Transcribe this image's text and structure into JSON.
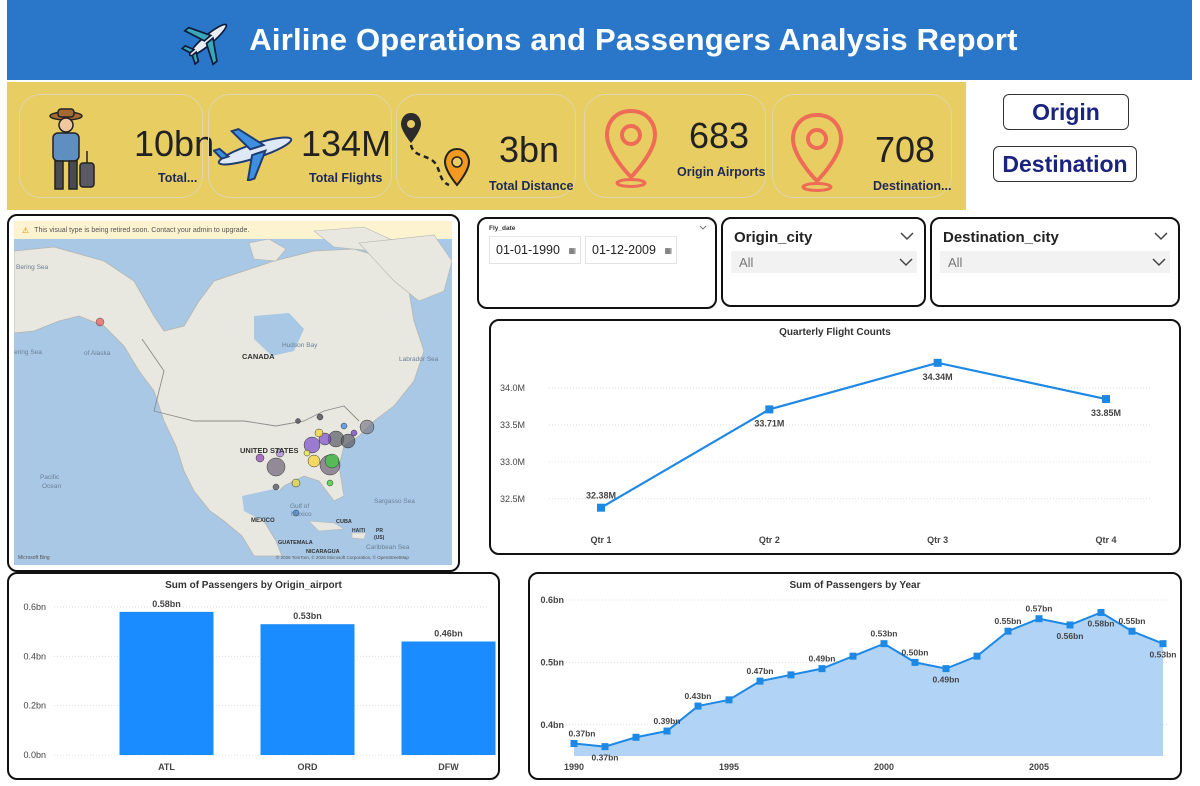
{
  "header": {
    "title": "Airline Operations and Passengers Analysis Report"
  },
  "kpis": [
    {
      "value": "10bn",
      "label": "Total...",
      "icon": "traveler-icon"
    },
    {
      "value": "134M",
      "label": "Total Flights",
      "icon": "airplane-icon"
    },
    {
      "value": "3bn",
      "label": "Total Distance",
      "icon": "route-icon"
    },
    {
      "value": "683",
      "label": "Origin Airports",
      "icon": "location-pin-icon"
    },
    {
      "value": "708",
      "label": "Destination...",
      "icon": "location-pin-icon"
    }
  ],
  "nav": {
    "origin_label": "Origin",
    "destination_label": "Destination"
  },
  "map": {
    "warning": "This visual type is being retired soon. Contact your admin to upgrade.",
    "labels": {
      "bering": "Bering Sea",
      "bering2": "ering Sea",
      "alaska": "of Alaska",
      "canada": "CANADA",
      "hudson": "Hudson Bay",
      "labrador": "Labrador Sea",
      "us": "UNITED STATES",
      "pacific": "Pacific\nOcean",
      "sargasso": "Sargasso Sea",
      "gulf": "Gulf of\nMexico",
      "mexico": "MEXICO",
      "cuba": "CUBA",
      "haiti": "HAITI",
      "pr": "PR\n(US)",
      "guatemala": "GUATEMALA",
      "nicaragua": "NICARAGUA",
      "caribbean": "Caribbean Sea",
      "bing": "Microsoft Bing",
      "copyright": "© 2026 TomTom, © 2026 Microsoft Corporation, © OpenStreetMap"
    }
  },
  "date_slicer": {
    "title": "Fly_date",
    "start": "01-01-1990",
    "end": "01-12-2009"
  },
  "origin_slicer": {
    "title": "Origin_city",
    "value": "All"
  },
  "destination_slicer": {
    "title": "Destination_city",
    "value": "All"
  },
  "chart_data": [
    {
      "type": "line",
      "title": "Quarterly Flight Counts",
      "categories": [
        "Qtr 1",
        "Qtr 2",
        "Qtr 3",
        "Qtr 4"
      ],
      "values": [
        32.38,
        33.71,
        34.34,
        33.85
      ],
      "data_labels": [
        "32.38M",
        "33.71M",
        "34.34M",
        "33.85M"
      ],
      "yticks": [
        "32.5M",
        "33.0M",
        "33.5M",
        "34.0M"
      ],
      "ytick_values": [
        32.5,
        33.0,
        33.5,
        34.0
      ],
      "ylim": [
        32.2,
        34.5
      ],
      "color": "#1e88e5",
      "grid": true
    },
    {
      "type": "bar",
      "title": "Sum of Passengers by Origin_airport",
      "categories": [
        "ATL",
        "ORD",
        "DFW"
      ],
      "values": [
        0.58,
        0.53,
        0.46
      ],
      "data_labels": [
        "0.58bn",
        "0.53bn",
        "0.46bn"
      ],
      "yticks": [
        "0.0bn",
        "0.2bn",
        "0.4bn",
        "0.6bn"
      ],
      "ytick_values": [
        0.0,
        0.2,
        0.4,
        0.6
      ],
      "ylim": [
        0,
        0.62
      ],
      "color": "#1a8cff",
      "grid": true
    },
    {
      "type": "area",
      "title": "Sum of Passengers by Year",
      "x": [
        1990,
        1991,
        1992,
        1993,
        1994,
        1995,
        1996,
        1997,
        1998,
        1999,
        2000,
        2001,
        2002,
        2003,
        2004,
        2005,
        2006,
        2007,
        2008,
        2009
      ],
      "values": [
        0.37,
        0.365,
        0.38,
        0.39,
        0.43,
        0.44,
        0.47,
        0.48,
        0.49,
        0.51,
        0.53,
        0.5,
        0.49,
        0.51,
        0.55,
        0.57,
        0.56,
        0.58,
        0.55,
        0.53
      ],
      "data_labels": [
        {
          "index": 0,
          "text": "0.37bn",
          "pos": "above"
        },
        {
          "index": 1,
          "text": "0.37bn",
          "pos": "below"
        },
        {
          "index": 3,
          "text": "0.39bn",
          "pos": "above"
        },
        {
          "index": 4,
          "text": "0.43bn",
          "pos": "above"
        },
        {
          "index": 6,
          "text": "0.47bn",
          "pos": "above"
        },
        {
          "index": 8,
          "text": "0.49bn",
          "pos": "above"
        },
        {
          "index": 10,
          "text": "0.53bn",
          "pos": "above"
        },
        {
          "index": 11,
          "text": "0.50bn",
          "pos": "above"
        },
        {
          "index": 12,
          "text": "0.49bn",
          "pos": "below"
        },
        {
          "index": 14,
          "text": "0.55bn",
          "pos": "above"
        },
        {
          "index": 15,
          "text": "0.57bn",
          "pos": "above"
        },
        {
          "index": 16,
          "text": "0.56bn",
          "pos": "below"
        },
        {
          "index": 17,
          "text": "0.58bn",
          "pos": "below"
        },
        {
          "index": 18,
          "text": "0.55bn",
          "pos": "above"
        },
        {
          "index": 19,
          "text": "0.53bn",
          "pos": "below"
        }
      ],
      "xticks": [
        "1990",
        "1995",
        "2000",
        "2005"
      ],
      "xtick_values": [
        1990,
        1995,
        2000,
        2005
      ],
      "yticks": [
        "0.4bn",
        "0.5bn",
        "0.6bn"
      ],
      "ytick_values": [
        0.4,
        0.5,
        0.6
      ],
      "ylim": [
        0.35,
        0.6
      ],
      "line_color": "#1e88e5",
      "fill_color": "#a9cff5",
      "grid": true
    }
  ]
}
